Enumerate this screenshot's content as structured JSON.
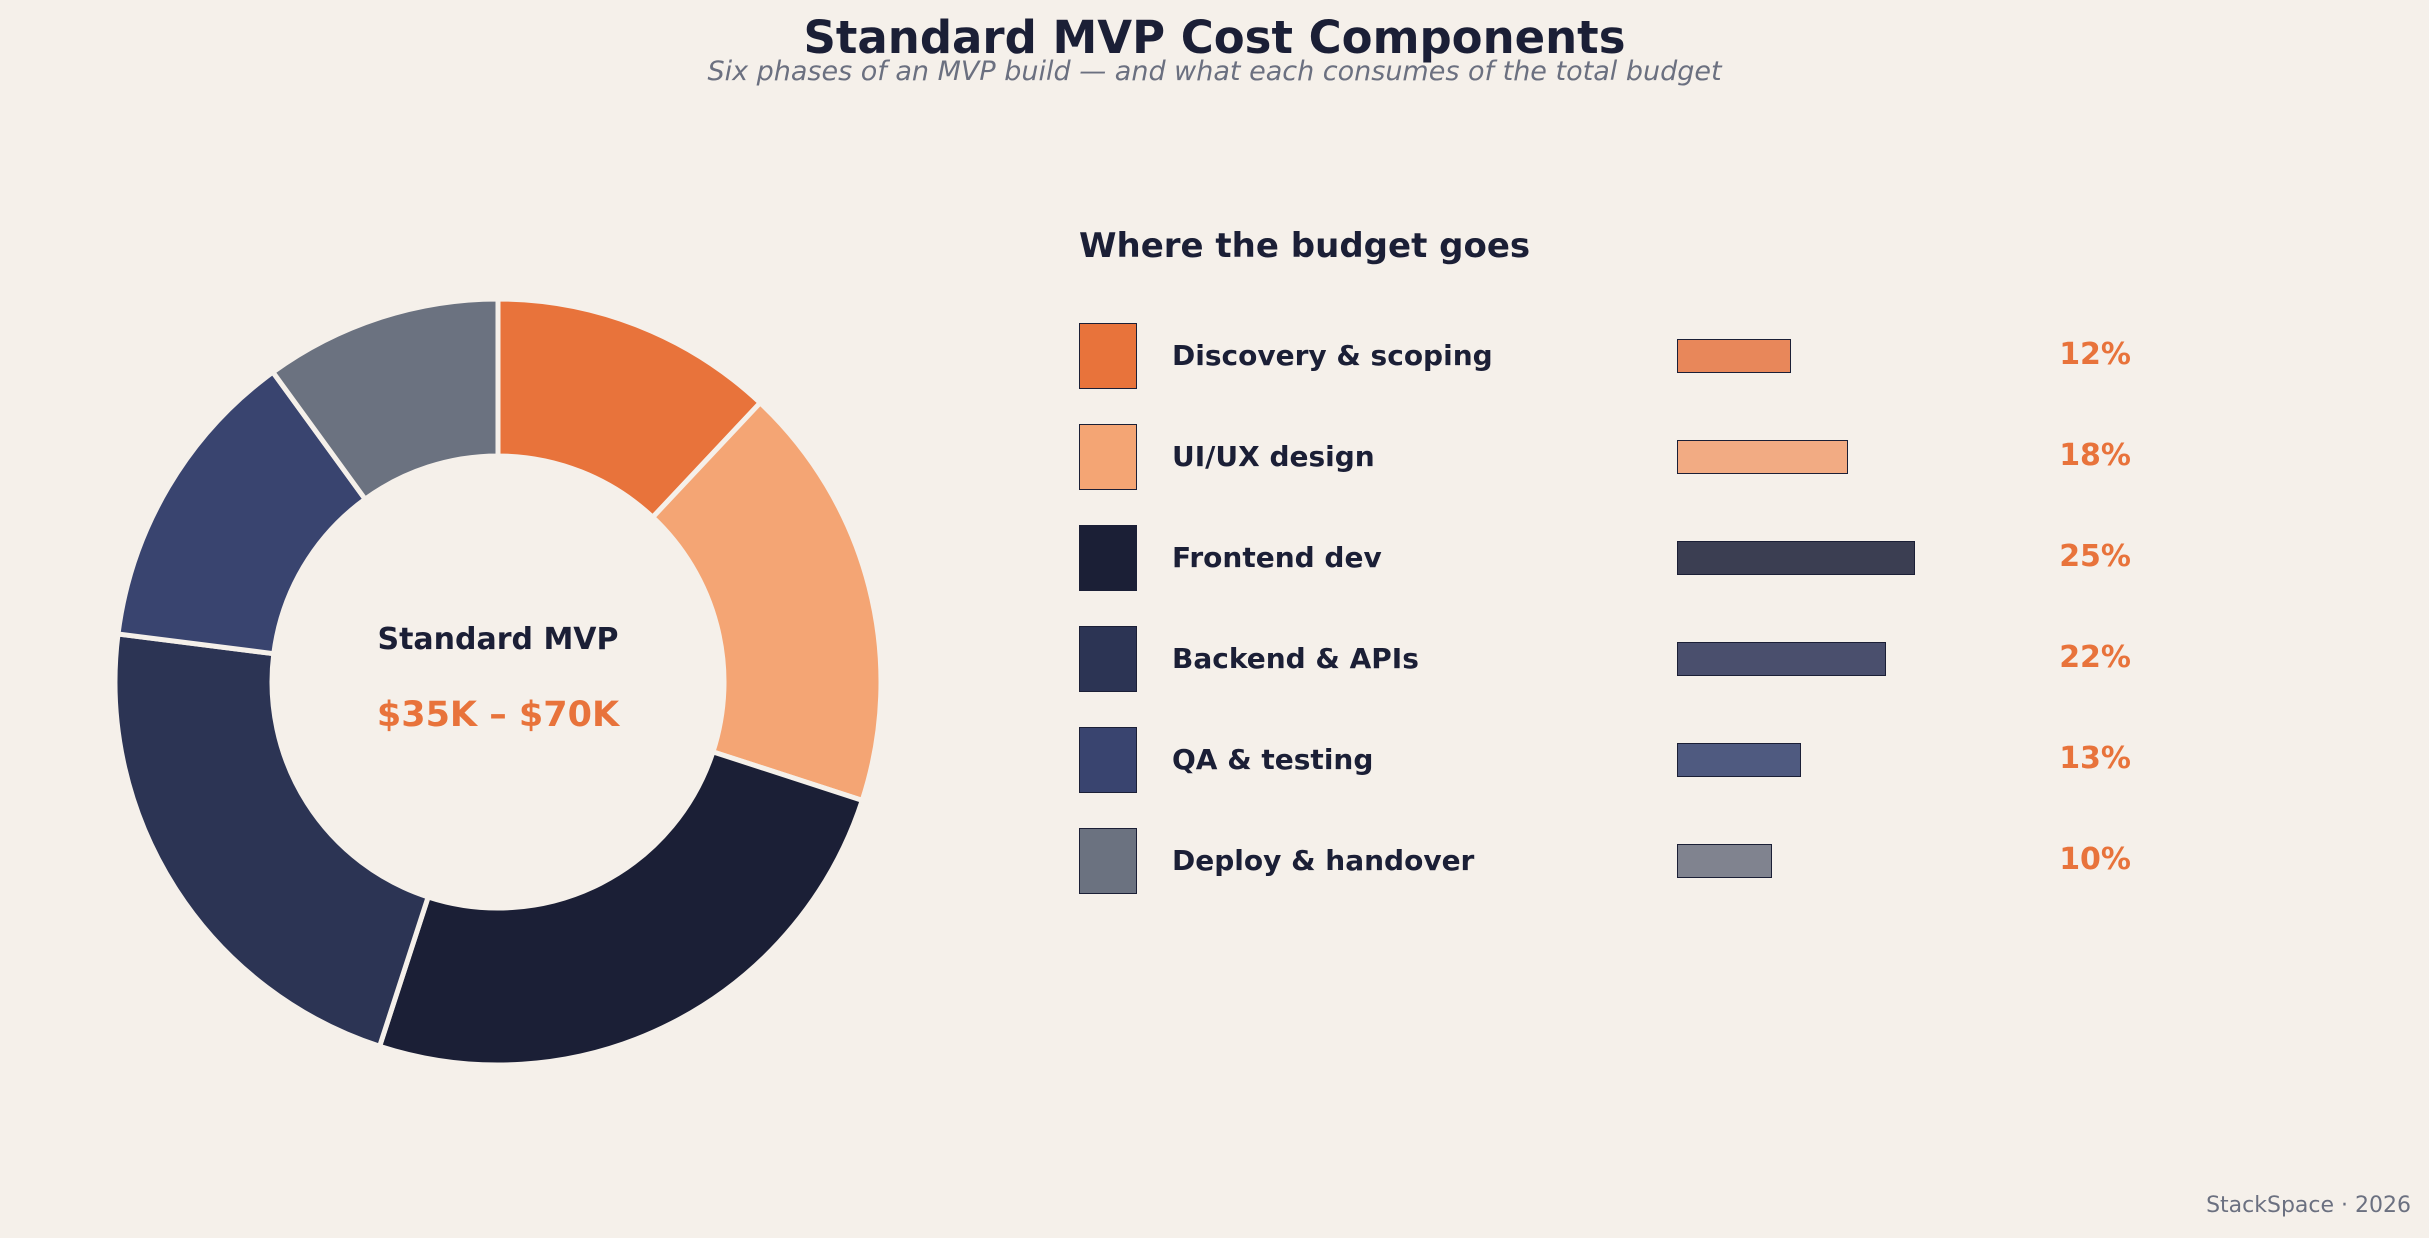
{
  "header": {
    "title": "Standard MVP Cost Components",
    "subtitle": "Six phases of an MVP build — and what each consumes of the total budget"
  },
  "center": {
    "title": "Standard MVP",
    "value": "$35K – $70K"
  },
  "legend": {
    "heading": "Where the budget goes"
  },
  "footer": {
    "credit": "StackSpace · 2026"
  },
  "chart_data": {
    "type": "pie",
    "style": "donut",
    "title": "Standard MVP Cost Components",
    "subtitle": "Six phases of an MVP build — and what each consumes of the total budget",
    "unit": "%",
    "categories": [
      "Discovery & scoping",
      "UI/UX design",
      "Frontend dev",
      "Backend & APIs",
      "QA & testing",
      "Deploy & handover"
    ],
    "values": [
      12,
      18,
      25,
      22,
      13,
      10
    ],
    "labels": [
      "12%",
      "18%",
      "25%",
      "22%",
      "13%",
      "10%"
    ],
    "colors": [
      "#e8733b",
      "#f4a574",
      "#1b1f36",
      "#2c3454",
      "#39446f",
      "#6b7280"
    ],
    "bar_colors": [
      "#e8875a",
      "#f2ab83",
      "#3b3e52",
      "#4a4f6d",
      "#4f5a80",
      "#80838f"
    ],
    "slice_edge_color": "#f5f0ea",
    "direction": "clockwise",
    "start": "top",
    "legend_position": "right"
  }
}
